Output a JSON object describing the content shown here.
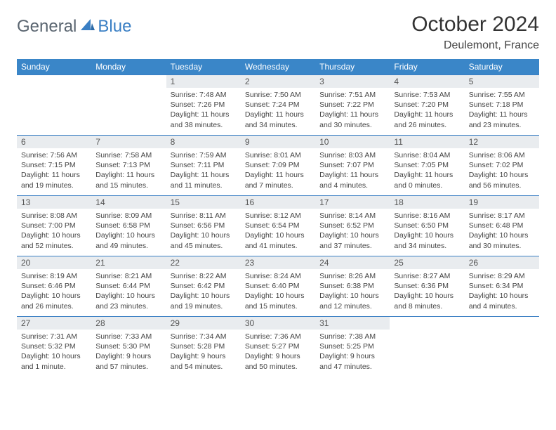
{
  "brand": {
    "part1": "General",
    "part2": "Blue"
  },
  "title": "October 2024",
  "location": "Deulemont, France",
  "colors": {
    "header_bg": "#3a86c8",
    "header_text": "#ffffff",
    "daynum_bg": "#e9ecef",
    "rule": "#3a7fc4",
    "body_text": "#444444",
    "brand_gray": "#5a6570",
    "brand_blue": "#3a7fc4"
  },
  "weekdays": [
    "Sunday",
    "Monday",
    "Tuesday",
    "Wednesday",
    "Thursday",
    "Friday",
    "Saturday"
  ],
  "lead_blanks": 2,
  "days": [
    {
      "n": 1,
      "sr": "7:48 AM",
      "ss": "7:26 PM",
      "dl": "11 hours and 38 minutes"
    },
    {
      "n": 2,
      "sr": "7:50 AM",
      "ss": "7:24 PM",
      "dl": "11 hours and 34 minutes"
    },
    {
      "n": 3,
      "sr": "7:51 AM",
      "ss": "7:22 PM",
      "dl": "11 hours and 30 minutes"
    },
    {
      "n": 4,
      "sr": "7:53 AM",
      "ss": "7:20 PM",
      "dl": "11 hours and 26 minutes"
    },
    {
      "n": 5,
      "sr": "7:55 AM",
      "ss": "7:18 PM",
      "dl": "11 hours and 23 minutes"
    },
    {
      "n": 6,
      "sr": "7:56 AM",
      "ss": "7:15 PM",
      "dl": "11 hours and 19 minutes"
    },
    {
      "n": 7,
      "sr": "7:58 AM",
      "ss": "7:13 PM",
      "dl": "11 hours and 15 minutes"
    },
    {
      "n": 8,
      "sr": "7:59 AM",
      "ss": "7:11 PM",
      "dl": "11 hours and 11 minutes"
    },
    {
      "n": 9,
      "sr": "8:01 AM",
      "ss": "7:09 PM",
      "dl": "11 hours and 7 minutes"
    },
    {
      "n": 10,
      "sr": "8:03 AM",
      "ss": "7:07 PM",
      "dl": "11 hours and 4 minutes"
    },
    {
      "n": 11,
      "sr": "8:04 AM",
      "ss": "7:05 PM",
      "dl": "11 hours and 0 minutes"
    },
    {
      "n": 12,
      "sr": "8:06 AM",
      "ss": "7:02 PM",
      "dl": "10 hours and 56 minutes"
    },
    {
      "n": 13,
      "sr": "8:08 AM",
      "ss": "7:00 PM",
      "dl": "10 hours and 52 minutes"
    },
    {
      "n": 14,
      "sr": "8:09 AM",
      "ss": "6:58 PM",
      "dl": "10 hours and 49 minutes"
    },
    {
      "n": 15,
      "sr": "8:11 AM",
      "ss": "6:56 PM",
      "dl": "10 hours and 45 minutes"
    },
    {
      "n": 16,
      "sr": "8:12 AM",
      "ss": "6:54 PM",
      "dl": "10 hours and 41 minutes"
    },
    {
      "n": 17,
      "sr": "8:14 AM",
      "ss": "6:52 PM",
      "dl": "10 hours and 37 minutes"
    },
    {
      "n": 18,
      "sr": "8:16 AM",
      "ss": "6:50 PM",
      "dl": "10 hours and 34 minutes"
    },
    {
      "n": 19,
      "sr": "8:17 AM",
      "ss": "6:48 PM",
      "dl": "10 hours and 30 minutes"
    },
    {
      "n": 20,
      "sr": "8:19 AM",
      "ss": "6:46 PM",
      "dl": "10 hours and 26 minutes"
    },
    {
      "n": 21,
      "sr": "8:21 AM",
      "ss": "6:44 PM",
      "dl": "10 hours and 23 minutes"
    },
    {
      "n": 22,
      "sr": "8:22 AM",
      "ss": "6:42 PM",
      "dl": "10 hours and 19 minutes"
    },
    {
      "n": 23,
      "sr": "8:24 AM",
      "ss": "6:40 PM",
      "dl": "10 hours and 15 minutes"
    },
    {
      "n": 24,
      "sr": "8:26 AM",
      "ss": "6:38 PM",
      "dl": "10 hours and 12 minutes"
    },
    {
      "n": 25,
      "sr": "8:27 AM",
      "ss": "6:36 PM",
      "dl": "10 hours and 8 minutes"
    },
    {
      "n": 26,
      "sr": "8:29 AM",
      "ss": "6:34 PM",
      "dl": "10 hours and 4 minutes"
    },
    {
      "n": 27,
      "sr": "7:31 AM",
      "ss": "5:32 PM",
      "dl": "10 hours and 1 minute"
    },
    {
      "n": 28,
      "sr": "7:33 AM",
      "ss": "5:30 PM",
      "dl": "9 hours and 57 minutes"
    },
    {
      "n": 29,
      "sr": "7:34 AM",
      "ss": "5:28 PM",
      "dl": "9 hours and 54 minutes"
    },
    {
      "n": 30,
      "sr": "7:36 AM",
      "ss": "5:27 PM",
      "dl": "9 hours and 50 minutes"
    },
    {
      "n": 31,
      "sr": "7:38 AM",
      "ss": "5:25 PM",
      "dl": "9 hours and 47 minutes"
    }
  ],
  "labels": {
    "sunrise": "Sunrise:",
    "sunset": "Sunset:",
    "daylight": "Daylight:"
  }
}
